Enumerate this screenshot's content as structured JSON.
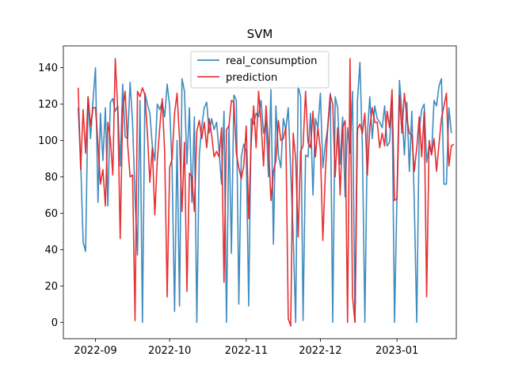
{
  "chart_data": {
    "type": "line",
    "title": "SVM",
    "xlabel": "",
    "ylabel": "",
    "x_range": [
      "2022-08-19",
      "2023-01-25"
    ],
    "ylim": [
      -9,
      152
    ],
    "x_ticks": [
      {
        "date": "2022-09-01",
        "label": "2022-09"
      },
      {
        "date": "2022-10-01",
        "label": "2022-10"
      },
      {
        "date": "2022-11-01",
        "label": "2022-11"
      },
      {
        "date": "2022-12-01",
        "label": "2022-12"
      },
      {
        "date": "2023-01-01",
        "label": "2023-01"
      }
    ],
    "y_ticks": [
      0,
      20,
      40,
      60,
      80,
      100,
      120,
      140
    ],
    "grid": false,
    "legend_position": "top-center",
    "start_date": "2022-08-25",
    "series": [
      {
        "name": "real_consumption",
        "color": "#1f77b4",
        "values": [
          118,
          88,
          44,
          39,
          124,
          101,
          122,
          140,
          66,
          115,
          89,
          118,
          64,
          121,
          123,
          116,
          119,
          86,
          131,
          102,
          101,
          132,
          110,
          68,
          37,
          122,
          0,
          126,
          120,
          115,
          97,
          89,
          120,
          117,
          121,
          113,
          131,
          119,
          84,
          6,
          100,
          9,
          134,
          127,
          87,
          118,
          66,
          113,
          0,
          92,
          108,
          118,
          121,
          104,
          112,
          106,
          110,
          94,
          76,
          116,
          0,
          108,
          38,
          125,
          122,
          10,
          91,
          98,
          94,
          9,
          112,
          109,
          115,
          113,
          122,
          104,
          111,
          80,
          128,
          43,
          119,
          92,
          85,
          112,
          106,
          118,
          83,
          48,
          0,
          130,
          124,
          1,
          92,
          91,
          115,
          70,
          112,
          107,
          126,
          85,
          98,
          107,
          126,
          0,
          124,
          118,
          87,
          113,
          69,
          107,
          93,
          127,
          0,
          122,
          143,
          96,
          0,
          103,
          124,
          101,
          119,
          112,
          110,
          107,
          119,
          97,
          99,
          123,
          0,
          70,
          133,
          116,
          92,
          121,
          83,
          116,
          66,
          0,
          106,
          117,
          120,
          88,
          97,
          93,
          122,
          119,
          130,
          134,
          76,
          76,
          118,
          104
        ]
      },
      {
        "name": "prediction",
        "color": "#e41a1c",
        "values": [
          129,
          84,
          117,
          93,
          124,
          108,
          118,
          118,
          98,
          76,
          84,
          64,
          110,
          101,
          81,
          145,
          117,
          46,
          117,
          127,
          98,
          80,
          81,
          1,
          127,
          124,
          129,
          125,
          104,
          77,
          96,
          59,
          89,
          107,
          123,
          93,
          14,
          85,
          90,
          115,
          126,
          101,
          61,
          99,
          17,
          82,
          80,
          61,
          105,
          111,
          101,
          110,
          96,
          112,
          103,
          91,
          94,
          91,
          107,
          22,
          106,
          108,
          122,
          121,
          93,
          85,
          79,
          86,
          108,
          57,
          99,
          119,
          96,
          127,
          110,
          86,
          119,
          97,
          67,
          83,
          89,
          111,
          100,
          101,
          107,
          2,
          -2,
          104,
          90,
          47,
          94,
          97,
          127,
          99,
          96,
          116,
          91,
          107,
          95,
          45,
          82,
          108,
          125,
          120,
          80,
          107,
          70,
          107,
          111,
          0,
          145,
          14,
          0,
          106,
          109,
          104,
          115,
          81,
          107,
          118,
          110,
          110,
          96,
          104,
          97,
          116,
          107,
          128,
          67,
          68,
          125,
          104,
          126,
          112,
          104,
          103,
          83,
          96,
          113,
          91,
          116,
          14,
          100,
          92,
          101,
          83,
          98,
          112,
          119,
          126,
          86,
          97,
          98
        ]
      }
    ]
  }
}
